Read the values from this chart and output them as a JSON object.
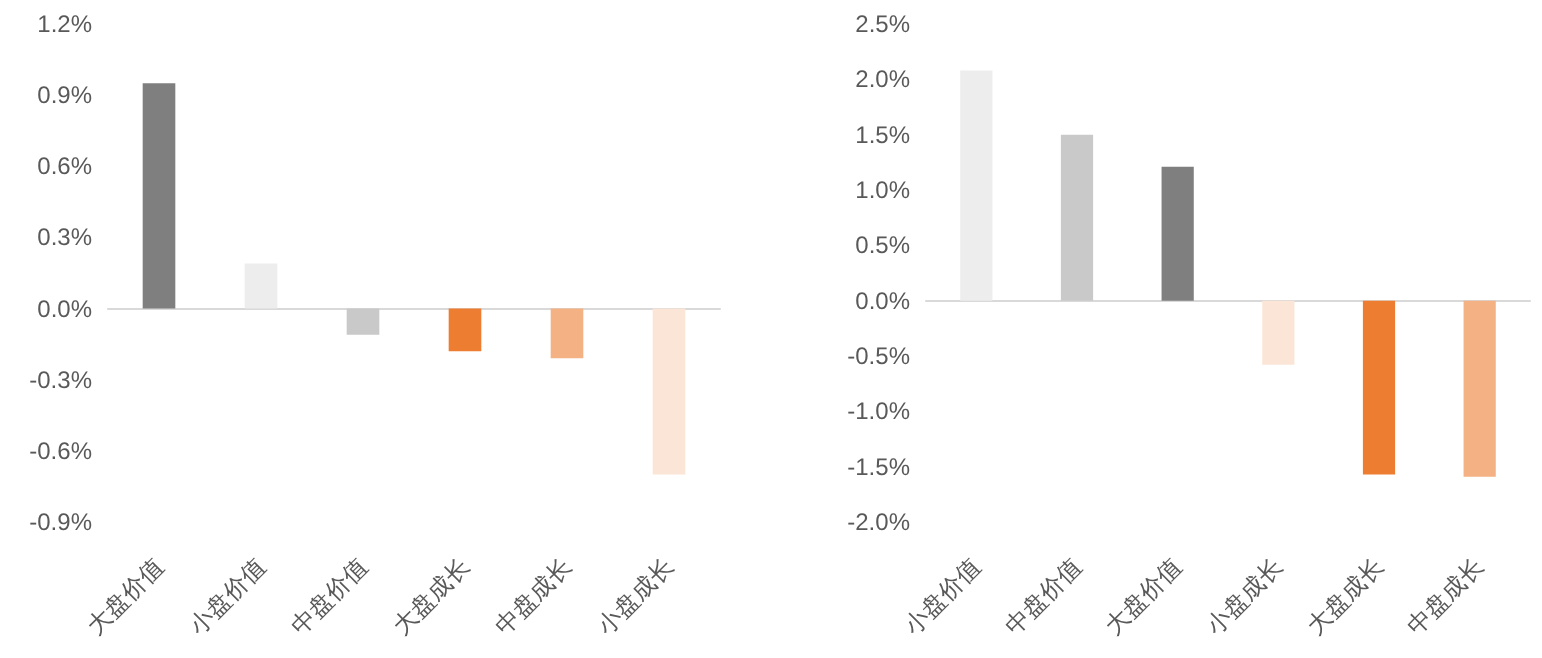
{
  "chart_data": [
    {
      "type": "bar",
      "categories": [
        "大盘价值",
        "小盘价值",
        "中盘价值",
        "大盘成长",
        "中盘成长",
        "小盘成长"
      ],
      "values": [
        0.95,
        0.19,
        -0.11,
        -0.18,
        -0.21,
        -0.7
      ],
      "colors": [
        "#7f7f7f",
        "#ededed",
        "#c9c9c9",
        "#ed7d31",
        "#f4b183",
        "#fbe5d6"
      ],
      "ylim": [
        -0.9,
        1.2
      ],
      "yticks": [
        {
          "value": -0.9,
          "label": "-0.9%"
        },
        {
          "value": -0.6,
          "label": "-0.6%"
        },
        {
          "value": -0.3,
          "label": "-0.3%"
        },
        {
          "value": 0,
          "label": "0.0%"
        },
        {
          "value": 0.3,
          "label": "0.3%"
        },
        {
          "value": 0.6,
          "label": "0.6%"
        },
        {
          "value": 0.9,
          "label": "0.9%"
        },
        {
          "value": 1.2,
          "label": "1.2%"
        }
      ]
    },
    {
      "type": "bar",
      "categories": [
        "小盘价值",
        "中盘价值",
        "大盘价值",
        "小盘成长",
        "大盘成长",
        "中盘成长"
      ],
      "values": [
        2.08,
        1.5,
        1.21,
        -0.58,
        -1.57,
        -1.59
      ],
      "colors": [
        "#ededed",
        "#c9c9c9",
        "#7f7f7f",
        "#fbe5d6",
        "#ed7d31",
        "#f4b183"
      ],
      "ylim": [
        -2.0,
        2.5
      ],
      "yticks": [
        {
          "value": -2,
          "label": "-2.0%"
        },
        {
          "value": -1.5,
          "label": "-1.5%"
        },
        {
          "value": -1,
          "label": "-1.0%"
        },
        {
          "value": -0.5,
          "label": "-0.5%"
        },
        {
          "value": 0,
          "label": "0.0%"
        },
        {
          "value": 0.5,
          "label": "0.5%"
        },
        {
          "value": 1,
          "label": "1.0%"
        },
        {
          "value": 1.5,
          "label": "1.5%"
        },
        {
          "value": 2,
          "label": "2.0%"
        },
        {
          "value": 2.5,
          "label": "2.5%"
        }
      ]
    }
  ]
}
